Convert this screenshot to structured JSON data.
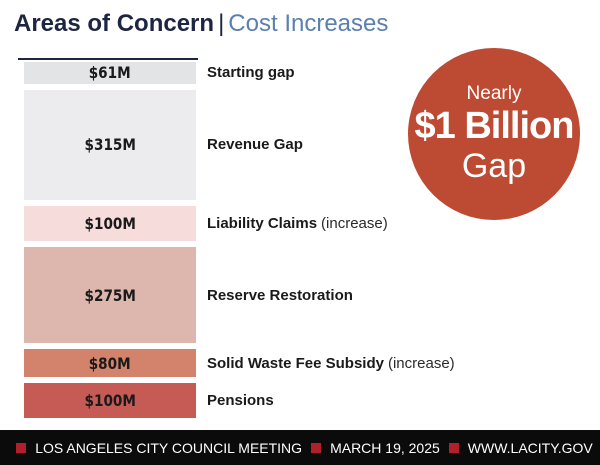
{
  "title": {
    "main": "Areas of Concern",
    "separator": "|",
    "sub": "Cost Increases"
  },
  "chart_data": {
    "type": "bar",
    "orientation": "stacked-vertical",
    "unit": "$M",
    "segments": [
      {
        "value": 61,
        "value_label": "$61M",
        "label": "Starting gap",
        "note": "",
        "color": "#e3e4e6"
      },
      {
        "value": 315,
        "value_label": "$315M",
        "label": "Revenue Gap",
        "note": "",
        "color": "#ecebed"
      },
      {
        "value": 100,
        "value_label": "$100M",
        "label": "Liability Claims",
        "note": "(increase)",
        "color": "#f6dcdb"
      },
      {
        "value": 275,
        "value_label": "$275M",
        "label": "Reserve Restoration",
        "note": "",
        "color": "#ddb6ad"
      },
      {
        "value": 80,
        "value_label": "$80M",
        "label": "Solid Waste Fee Subsidy",
        "note": "(increase)",
        "color": "#d3826c"
      },
      {
        "value": 100,
        "value_label": "$100M",
        "label": "Pensions",
        "note": "",
        "color": "#c65a55"
      }
    ]
  },
  "callout": {
    "top": "Nearly",
    "main": "$1 Billion",
    "bottom": "Gap",
    "color": "#bd4a33"
  },
  "footer": {
    "items": [
      "LOS ANGELES CITY COUNCIL MEETING",
      "MARCH 19, 2025",
      "WWW.LACITY.GOV"
    ],
    "accent_color": "#b0202a"
  }
}
